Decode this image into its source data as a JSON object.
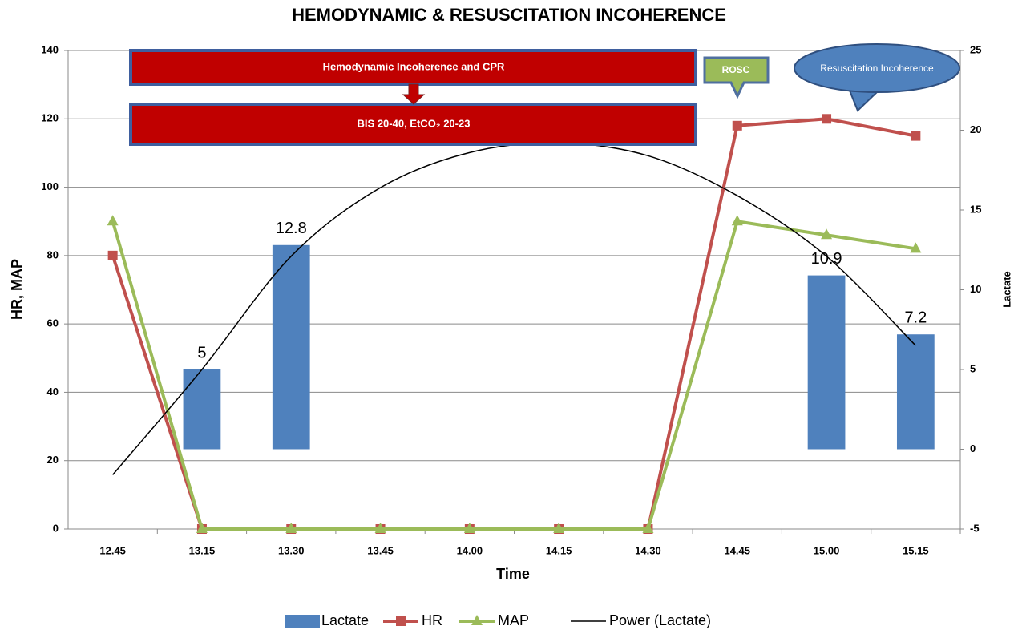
{
  "chart_data": {
    "type": "combo",
    "title": "HEMODYNAMIC & RESUSCITATION INCOHERENCE",
    "x_label": "Time",
    "y_label": "HR, MAP",
    "y2_label": "Lactate",
    "categories": [
      "12.45",
      "13.15",
      "13.30",
      "13.45",
      "14.00",
      "14.15",
      "14.30",
      "14.45",
      "15.00",
      "15.15"
    ],
    "series": [
      {
        "name": "Lactate",
        "type": "bar",
        "axis": "y2",
        "color": "#4f81bd",
        "values": [
          null,
          5,
          12.8,
          null,
          null,
          null,
          null,
          null,
          10.9,
          7.2
        ]
      },
      {
        "name": "HR",
        "type": "line",
        "marker": "square",
        "color": "#c0504d",
        "values": [
          80,
          0,
          0,
          0,
          0,
          0,
          0,
          118,
          120,
          115
        ]
      },
      {
        "name": "MAP",
        "type": "line",
        "marker": "triangle",
        "color": "#9bbb59",
        "values": [
          90,
          0,
          0,
          0,
          0,
          0,
          0,
          90,
          86,
          82
        ]
      },
      {
        "name": "Power (Lactate)",
        "type": "trend",
        "axis": "y2",
        "color": "#000000",
        "values": [
          -1.6,
          5.0,
          12.1,
          16.4,
          18.6,
          19.2,
          18.4,
          15.9,
          12.1,
          6.5
        ]
      }
    ],
    "ylim": [
      0,
      140
    ],
    "yticks": [
      0,
      20,
      40,
      60,
      80,
      100,
      120,
      140
    ],
    "y2lim": [
      -5,
      25
    ],
    "y2ticks": [
      -5,
      0,
      5,
      10,
      15,
      20,
      25
    ],
    "grid": true,
    "legend": "bottom",
    "annotations": [
      "Hemodynamic Incoherence and CPR",
      "BIS 20-40, EtCO₂ 20-23",
      "ROSC",
      "Resuscitation Incoherence"
    ]
  }
}
